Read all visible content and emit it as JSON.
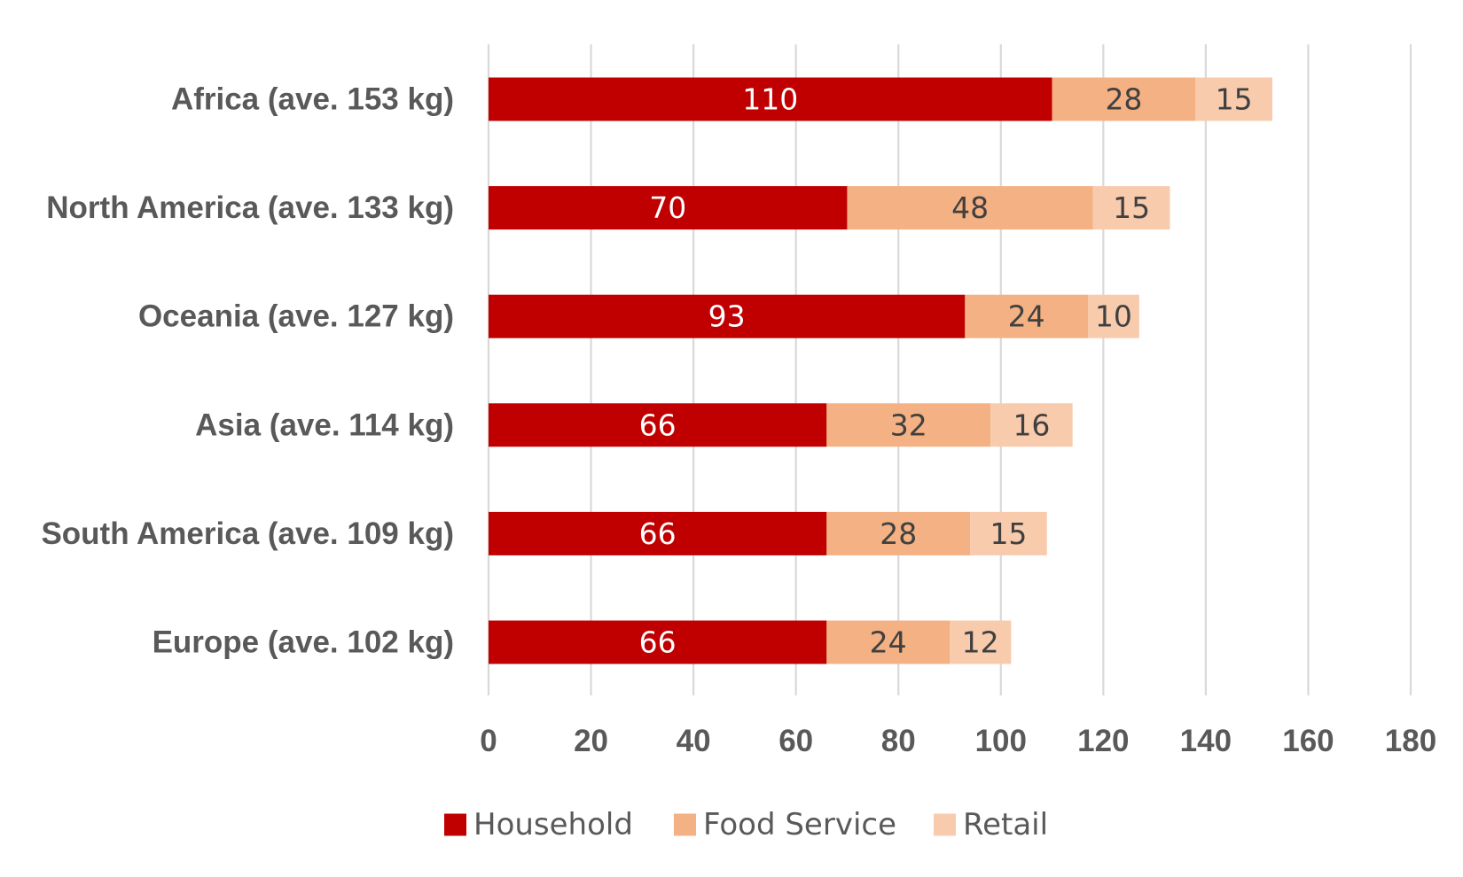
{
  "chart_data": {
    "type": "bar",
    "orientation": "horizontal",
    "stacked": true,
    "title": "",
    "xlabel": "",
    "ylabel": "",
    "categories": [
      "Africa (ave. 153 kg)",
      "North America (ave. 133 kg)",
      "Oceania (ave. 127 kg)",
      "Asia (ave. 114 kg)",
      "South America (ave. 109 kg)",
      "Europe (ave. 102 kg)"
    ],
    "series": [
      {
        "name": "Household",
        "color": "#C00000",
        "label_color": "#FFFFFF",
        "values": [
          110,
          70,
          93,
          66,
          66,
          66
        ]
      },
      {
        "name": "Food Service",
        "color": "#F4B183",
        "label_color": "#404040",
        "values": [
          28,
          48,
          24,
          32,
          28,
          24
        ]
      },
      {
        "name": "Retail",
        "color": "#F8CBAD",
        "label_color": "#404040",
        "values": [
          15,
          15,
          10,
          16,
          15,
          12
        ]
      }
    ],
    "xlim": [
      0,
      180
    ],
    "xticks": [
      0,
      20,
      40,
      60,
      80,
      100,
      120,
      140,
      160,
      180
    ],
    "grid": "vertical",
    "legend_position": "bottom"
  }
}
